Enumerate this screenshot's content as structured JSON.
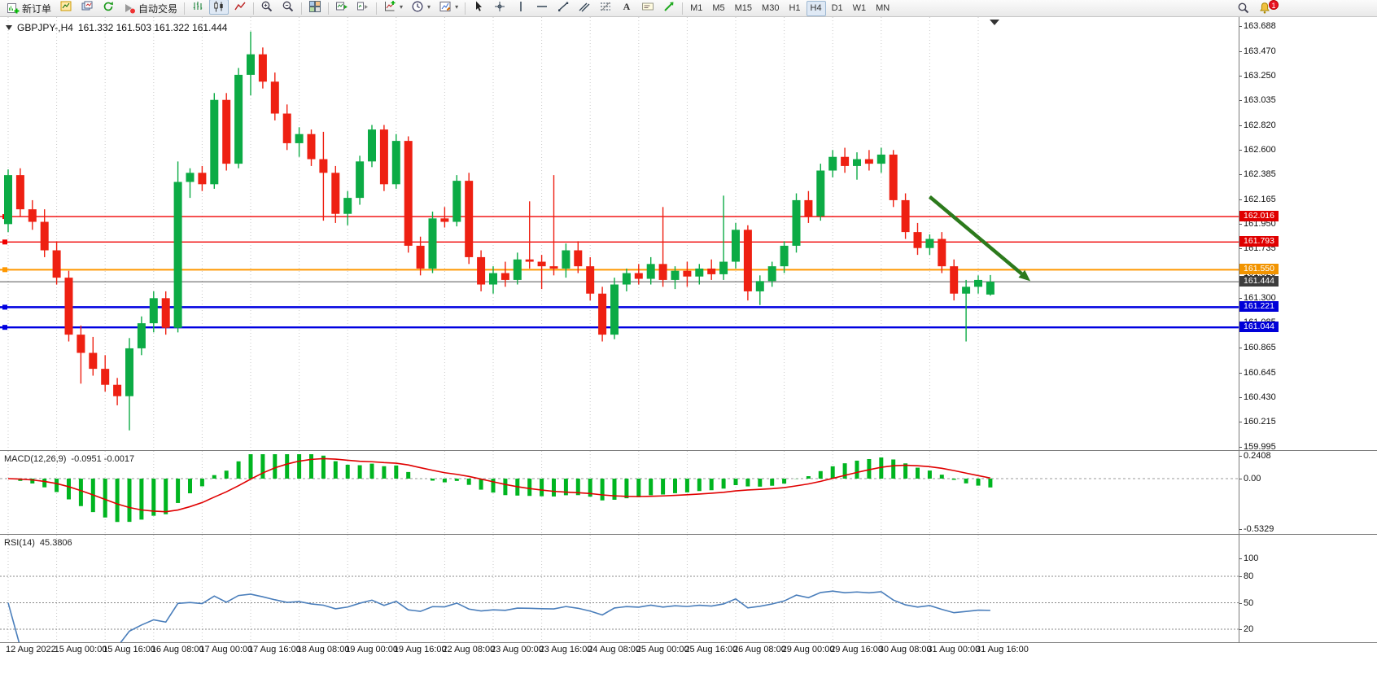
{
  "toolbar": {
    "new_order_label": "新订单",
    "autotrading_label": "自动交易",
    "icon_buttons_left": [
      "new-chart",
      "profiles",
      "refresh"
    ],
    "chart_type_buttons": [
      "bar-chart",
      "candlestick",
      "line-chart"
    ],
    "active_chart_type": "candlestick",
    "zoom_buttons": [
      "zoom-in",
      "zoom-out"
    ],
    "window_buttons": [
      "tile-windows"
    ],
    "scroll_buttons": [
      "auto-scroll",
      "chart-shift"
    ],
    "dropdown_buttons": [
      "indicators",
      "periods",
      "templates"
    ],
    "drawing_buttons": [
      "cursor",
      "crosshair",
      "vertical-line",
      "horizontal-line",
      "trendline",
      "equidistant-channel",
      "fibonacci",
      "text",
      "text-label",
      "arrows"
    ],
    "timeframes": [
      "M1",
      "M5",
      "M15",
      "M30",
      "H1",
      "H4",
      "D1",
      "W1",
      "MN"
    ],
    "active_timeframe": "H4",
    "right_buttons": [
      "search",
      "notifications"
    ],
    "notification_badge": "1"
  },
  "chart": {
    "header": {
      "symbol_period": "GBPJPY-,H4",
      "ohlc": "161.332 161.503 161.322 161.444"
    },
    "price_axis": [
      "163.688",
      "163.470",
      "163.250",
      "163.035",
      "162.820",
      "162.600",
      "162.385",
      "162.165",
      "161.950",
      "161.735",
      "161.520",
      "161.300",
      "161.085",
      "160.865",
      "160.645",
      "160.430",
      "160.215",
      "159.995"
    ],
    "price_tags": [
      {
        "label": "162.016",
        "price": 162.016,
        "bg": "#e00000",
        "name": "resistance-tag-1"
      },
      {
        "label": "161.793",
        "price": 161.793,
        "bg": "#e00000",
        "name": "resistance-tag-2"
      },
      {
        "label": "161.550",
        "price": 161.55,
        "bg": "#f29400",
        "name": "pivot-tag"
      },
      {
        "label": "161.444",
        "price": 161.444,
        "bg": "#3d3d3d",
        "name": "current-price-tag"
      },
      {
        "label": "161.221",
        "price": 161.221,
        "bg": "#0000d8",
        "name": "support-tag-1"
      },
      {
        "label": "161.044",
        "price": 161.044,
        "bg": "#0000d8",
        "name": "support-tag-2"
      }
    ]
  },
  "indicators": {
    "macd": {
      "label": "MACD(12,26,9)",
      "values": "-0.0951 -0.0017",
      "axis": [
        "0.2408",
        "0.00",
        "-0.5329"
      ]
    },
    "rsi": {
      "label": "RSI(14)",
      "value": "45.3806",
      "axis": [
        "100",
        "80",
        "50",
        "20"
      ]
    }
  },
  "chart_data": {
    "type": "candlestick",
    "symbol": "GBPJPY-",
    "period": "H4",
    "ohlc_display": {
      "open": "161.332",
      "high": "161.503",
      "low": "161.322",
      "close": "161.444"
    },
    "ylim": [
      159.966,
      163.767
    ],
    "x_label_every": 4,
    "x_labels": [
      "12 Aug 2022",
      "15 Aug 00:00",
      "15 Aug 16:00",
      "16 Aug 08:00",
      "17 Aug 00:00",
      "17 Aug 16:00",
      "18 Aug 08:00",
      "19 Aug 00:00",
      "19 Aug 16:00",
      "22 Aug 08:00",
      "23 Aug 00:00",
      "23 Aug 16:00",
      "24 Aug 08:00",
      "25 Aug 00:00",
      "25 Aug 16:00",
      "26 Aug 08:00",
      "29 Aug 00:00",
      "29 Aug 16:00",
      "30 Aug 08:00",
      "31 Aug 00:00",
      "31 Aug 16:00"
    ],
    "candles": [
      [
        161.95,
        162.43,
        161.88,
        162.38
      ],
      [
        162.38,
        162.44,
        162.02,
        162.08
      ],
      [
        162.08,
        162.16,
        161.9,
        161.97
      ],
      [
        161.97,
        162.08,
        161.66,
        161.72
      ],
      [
        161.72,
        161.8,
        161.42,
        161.48
      ],
      [
        161.48,
        161.54,
        160.92,
        160.98
      ],
      [
        160.98,
        161.06,
        160.55,
        160.82
      ],
      [
        160.82,
        160.96,
        160.62,
        160.68
      ],
      [
        160.68,
        160.8,
        160.48,
        160.54
      ],
      [
        160.54,
        160.6,
        160.36,
        160.44
      ],
      [
        160.44,
        160.95,
        160.14,
        160.86
      ],
      [
        160.86,
        161.14,
        160.8,
        161.08
      ],
      [
        161.08,
        161.36,
        161.0,
        161.3
      ],
      [
        161.3,
        161.36,
        160.98,
        161.04
      ],
      [
        161.04,
        162.5,
        161.0,
        162.32
      ],
      [
        162.32,
        162.44,
        162.18,
        162.4
      ],
      [
        162.4,
        162.46,
        162.24,
        162.3
      ],
      [
        162.3,
        163.1,
        162.26,
        163.04
      ],
      [
        163.04,
        163.1,
        162.42,
        162.48
      ],
      [
        162.48,
        163.32,
        162.44,
        163.26
      ],
      [
        163.26,
        163.64,
        163.08,
        163.44
      ],
      [
        163.44,
        163.5,
        163.14,
        163.2
      ],
      [
        163.2,
        163.28,
        162.86,
        162.92
      ],
      [
        162.92,
        163.0,
        162.6,
        162.66
      ],
      [
        162.66,
        162.8,
        162.54,
        162.74
      ],
      [
        162.74,
        162.78,
        162.46,
        162.52
      ],
      [
        162.52,
        162.76,
        161.98,
        162.4
      ],
      [
        162.4,
        162.46,
        161.96,
        162.04
      ],
      [
        162.04,
        162.24,
        161.94,
        162.18
      ],
      [
        162.18,
        162.55,
        162.12,
        162.5
      ],
      [
        162.5,
        162.82,
        162.45,
        162.78
      ],
      [
        162.78,
        162.82,
        162.24,
        162.3
      ],
      [
        162.3,
        162.74,
        162.26,
        162.68
      ],
      [
        162.68,
        162.72,
        161.7,
        161.76
      ],
      [
        161.76,
        161.84,
        161.5,
        161.56
      ],
      [
        161.56,
        162.06,
        161.52,
        162.0
      ],
      [
        162.0,
        162.1,
        161.92,
        161.97
      ],
      [
        161.97,
        162.38,
        161.93,
        162.33
      ],
      [
        162.33,
        162.4,
        161.6,
        161.66
      ],
      [
        161.66,
        161.72,
        161.36,
        161.42
      ],
      [
        161.42,
        161.58,
        161.34,
        161.52
      ],
      [
        161.52,
        161.62,
        161.4,
        161.46
      ],
      [
        161.46,
        161.7,
        161.42,
        161.64
      ],
      [
        161.64,
        162.15,
        161.56,
        161.62
      ],
      [
        161.62,
        161.68,
        161.38,
        161.58
      ],
      [
        161.58,
        162.38,
        161.5,
        161.56
      ],
      [
        161.56,
        161.78,
        161.48,
        161.72
      ],
      [
        161.72,
        161.8,
        161.52,
        161.58
      ],
      [
        161.58,
        161.66,
        161.28,
        161.34
      ],
      [
        161.34,
        161.4,
        160.92,
        160.98
      ],
      [
        160.98,
        161.48,
        160.94,
        161.42
      ],
      [
        161.42,
        161.56,
        161.36,
        161.52
      ],
      [
        161.52,
        161.6,
        161.42,
        161.47
      ],
      [
        161.47,
        161.66,
        161.42,
        161.6
      ],
      [
        161.6,
        162.1,
        161.4,
        161.46
      ],
      [
        161.46,
        161.58,
        161.38,
        161.54
      ],
      [
        161.54,
        161.62,
        161.4,
        161.49
      ],
      [
        161.49,
        161.6,
        161.42,
        161.56
      ],
      [
        161.56,
        161.64,
        161.46,
        161.51
      ],
      [
        161.51,
        162.2,
        161.46,
        161.62
      ],
      [
        161.62,
        161.96,
        161.56,
        161.9
      ],
      [
        161.9,
        161.94,
        161.28,
        161.36
      ],
      [
        161.36,
        161.5,
        161.24,
        161.45
      ],
      [
        161.45,
        161.62,
        161.4,
        161.58
      ],
      [
        161.58,
        161.8,
        161.52,
        161.76
      ],
      [
        161.76,
        162.22,
        161.7,
        162.16
      ],
      [
        162.16,
        162.24,
        161.96,
        162.02
      ],
      [
        162.02,
        162.48,
        161.98,
        162.42
      ],
      [
        162.42,
        162.6,
        162.36,
        162.54
      ],
      [
        162.54,
        162.62,
        162.4,
        162.46
      ],
      [
        162.46,
        162.58,
        162.34,
        162.52
      ],
      [
        162.52,
        162.6,
        162.42,
        162.48
      ],
      [
        162.48,
        162.62,
        162.4,
        162.56
      ],
      [
        162.56,
        162.6,
        162.1,
        162.16
      ],
      [
        162.16,
        162.22,
        161.82,
        161.88
      ],
      [
        161.88,
        161.96,
        161.68,
        161.74
      ],
      [
        161.74,
        161.86,
        161.68,
        161.82
      ],
      [
        161.82,
        161.88,
        161.52,
        161.58
      ],
      [
        161.58,
        161.64,
        161.28,
        161.34
      ],
      [
        161.34,
        161.46,
        160.92,
        161.4
      ],
      [
        161.4,
        161.5,
        161.34,
        161.46
      ],
      [
        161.332,
        161.503,
        161.322,
        161.444
      ]
    ],
    "horizontal_lines": [
      {
        "price": 162.016,
        "color": "#f00000",
        "width": 1.4,
        "handle": true,
        "name": "resistance-line-1"
      },
      {
        "price": 161.793,
        "color": "#f00000",
        "width": 1.4,
        "handle": true,
        "name": "resistance-line-2"
      },
      {
        "price": 161.55,
        "color": "#ff9800",
        "width": 2,
        "handle": true,
        "name": "pivot-line"
      },
      {
        "price": 161.444,
        "color": "#555555",
        "width": 1,
        "handle": false,
        "name": "current-price-line"
      },
      {
        "price": 161.221,
        "color": "#0000e0",
        "width": 2.4,
        "handle": true,
        "name": "support-line-1"
      },
      {
        "price": 161.044,
        "color": "#0000e0",
        "width": 2.4,
        "handle": true,
        "name": "support-line-2"
      }
    ],
    "arrow": {
      "from_index": 76,
      "from_price": 162.19,
      "to_index": 84.3,
      "to_price": 161.45,
      "color": "#2c7a1c"
    },
    "macd": {
      "params": [
        12,
        26,
        9
      ],
      "scale_max": 0.2408,
      "scale_min": -0.5329
    },
    "rsi": {
      "period": 14,
      "levels": [
        80,
        50,
        20
      ]
    },
    "colors": {
      "bull": "#0cab45",
      "bear": "#ee2012",
      "macd_hist": "#00b520",
      "macd_signal": "#e00000",
      "rsi_line": "#4a7ebb",
      "grid": "#c9c9c9"
    }
  }
}
